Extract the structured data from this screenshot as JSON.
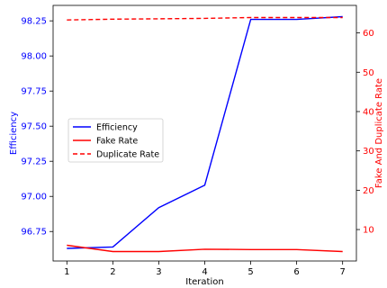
{
  "chart_data": {
    "type": "line",
    "x": [
      1,
      2,
      3,
      4,
      5,
      6,
      7
    ],
    "xticks": [
      1,
      2,
      3,
      4,
      5,
      6,
      7
    ],
    "xlim": [
      0.7,
      7.3
    ],
    "xlabel": "Iteration",
    "y_left": {
      "label": "Efficiency",
      "ticks": [
        96.75,
        97.0,
        97.25,
        97.5,
        97.75,
        98.0,
        98.25
      ],
      "tick_labels": [
        "96.75",
        "97.00",
        "97.25",
        "97.50",
        "97.75",
        "98.00",
        "98.25"
      ],
      "lim": [
        96.54,
        98.36
      ],
      "color": "#0000ff"
    },
    "y_right": {
      "label": "Fake And Duplicate Rate",
      "ticks": [
        10,
        20,
        30,
        40,
        50,
        60
      ],
      "tick_labels": [
        "10",
        "20",
        "30",
        "40",
        "50",
        "60"
      ],
      "lim": [
        2,
        67
      ],
      "color": "#ff0000"
    },
    "series": [
      {
        "name": "Efficiency",
        "axis": "left",
        "color": "#0000ff",
        "style": "solid",
        "values": [
          96.63,
          96.64,
          96.92,
          97.08,
          98.26,
          98.26,
          98.28
        ]
      },
      {
        "name": "Fake Rate",
        "axis": "right",
        "color": "#ff0000",
        "style": "solid",
        "values": [
          6.0,
          4.4,
          4.4,
          5.0,
          4.9,
          4.9,
          4.4
        ]
      },
      {
        "name": "Duplicate Rate",
        "axis": "right",
        "color": "#ff0000",
        "style": "dashed",
        "values": [
          63.3,
          63.5,
          63.6,
          63.7,
          63.9,
          63.9,
          63.9
        ]
      }
    ],
    "legend": "center-left",
    "grid": false
  }
}
